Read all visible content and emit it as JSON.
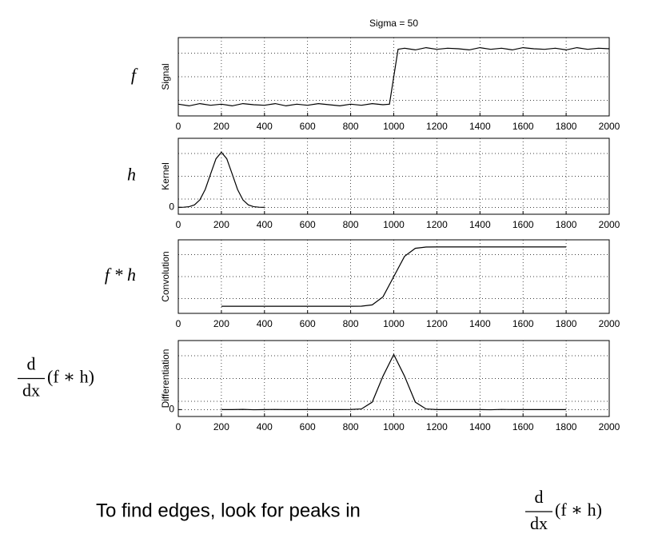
{
  "chart_data": [
    {
      "type": "line",
      "title": "Sigma = 50",
      "y_label": "Signal",
      "row_label": "f",
      "x": [
        0,
        50,
        100,
        150,
        200,
        250,
        300,
        350,
        400,
        450,
        500,
        550,
        600,
        650,
        700,
        750,
        800,
        850,
        900,
        950,
        980,
        1020,
        1050,
        1100,
        1150,
        1200,
        1250,
        1300,
        1350,
        1400,
        1450,
        1500,
        1550,
        1600,
        1650,
        1700,
        1750,
        1800,
        1850,
        1900,
        1950,
        2000
      ],
      "values": [
        0.01,
        -0.02,
        0.02,
        -0.01,
        0.01,
        -0.02,
        0.02,
        0.0,
        -0.01,
        0.02,
        -0.02,
        0.01,
        -0.01,
        0.02,
        0.0,
        -0.02,
        0.01,
        -0.01,
        0.02,
        0.0,
        0.01,
        0.99,
        1.01,
        0.98,
        1.02,
        0.99,
        1.01,
        1.0,
        0.98,
        1.02,
        0.99,
        1.01,
        0.98,
        1.02,
        1.0,
        0.99,
        1.01,
        0.98,
        1.02,
        0.99,
        1.01,
        1.0
      ],
      "color": "#000000",
      "xlim": [
        0,
        2000
      ],
      "xticks": [
        0,
        200,
        400,
        600,
        800,
        1000,
        1200,
        1400,
        1600,
        1800,
        2000
      ],
      "ylim": [
        -0.2,
        1.2
      ],
      "grid": true
    },
    {
      "type": "line",
      "y_label": "Kernel",
      "row_label": "h",
      "x": [
        0,
        25,
        50,
        75,
        100,
        125,
        150,
        175,
        200,
        225,
        250,
        275,
        300,
        325,
        350,
        375,
        400
      ],
      "values": [
        0,
        2e-05,
        9e-05,
        0.00035,
        0.00108,
        0.00259,
        0.00484,
        0.00704,
        0.00798,
        0.00704,
        0.00484,
        0.00259,
        0.00108,
        0.00035,
        9e-05,
        2e-05,
        0
      ],
      "color": "#000000",
      "xlim": [
        0,
        2000
      ],
      "xticks": [
        0,
        200,
        400,
        600,
        800,
        1000,
        1200,
        1400,
        1600,
        1800,
        2000
      ],
      "ylim": [
        -0.001,
        0.01
      ],
      "yticks": [
        0
      ],
      "grid": true
    },
    {
      "type": "line",
      "y_label": "Convolution",
      "row_label": "f * h",
      "x": [
        200,
        250,
        300,
        350,
        400,
        450,
        500,
        550,
        600,
        650,
        700,
        750,
        800,
        850,
        900,
        950,
        1000,
        1050,
        1100,
        1150,
        1200,
        1250,
        1300,
        1350,
        1400,
        1450,
        1500,
        1550,
        1600,
        1650,
        1700,
        1750,
        1800
      ],
      "values": [
        0,
        0,
        0,
        0,
        0,
        0,
        0,
        0,
        0,
        0,
        0,
        0,
        0,
        0.0013,
        0.023,
        0.159,
        0.5,
        0.841,
        0.977,
        0.9987,
        1,
        1,
        1,
        1,
        1,
        1,
        1,
        1,
        1,
        1,
        1,
        1,
        1
      ],
      "color": "#000000",
      "xlim": [
        0,
        2000
      ],
      "xticks": [
        0,
        200,
        400,
        600,
        800,
        1000,
        1200,
        1400,
        1600,
        1800,
        2000
      ],
      "ylim": [
        -0.12,
        1.12
      ],
      "grid": true
    },
    {
      "type": "line",
      "y_label": "Differentiation",
      "row_label": {
        "numerator": "d",
        "denominator": "dx",
        "rest": "(f ∗ h)"
      },
      "x": [
        200,
        250,
        300,
        350,
        400,
        450,
        500,
        550,
        600,
        650,
        700,
        750,
        800,
        850,
        900,
        950,
        1000,
        1050,
        1100,
        1150,
        1200,
        1250,
        1300,
        1350,
        1400,
        1450,
        1500,
        1550,
        1600,
        1650,
        1700,
        1750,
        1800
      ],
      "values": [
        0,
        0,
        3e-05,
        -2e-05,
        0,
        2e-05,
        0,
        0,
        0,
        0,
        0,
        0,
        1e-05,
        9e-05,
        0.00108,
        0.00484,
        0.00798,
        0.00484,
        0.00108,
        9e-05,
        0,
        0,
        0,
        0,
        0,
        -2e-05,
        2e-05,
        0,
        0,
        0,
        0,
        0,
        0
      ],
      "color": "#000000",
      "xlim": [
        0,
        2000
      ],
      "xticks": [
        0,
        200,
        400,
        600,
        800,
        1000,
        1200,
        1400,
        1600,
        1800,
        2000
      ],
      "ylim": [
        -0.001,
        0.01
      ],
      "yticks": [
        0
      ],
      "grid": true
    }
  ],
  "caption": {
    "text": "To find edges, look for peaks in",
    "numerator": "d",
    "denominator": "dx",
    "rest": "(f ∗ h)"
  }
}
